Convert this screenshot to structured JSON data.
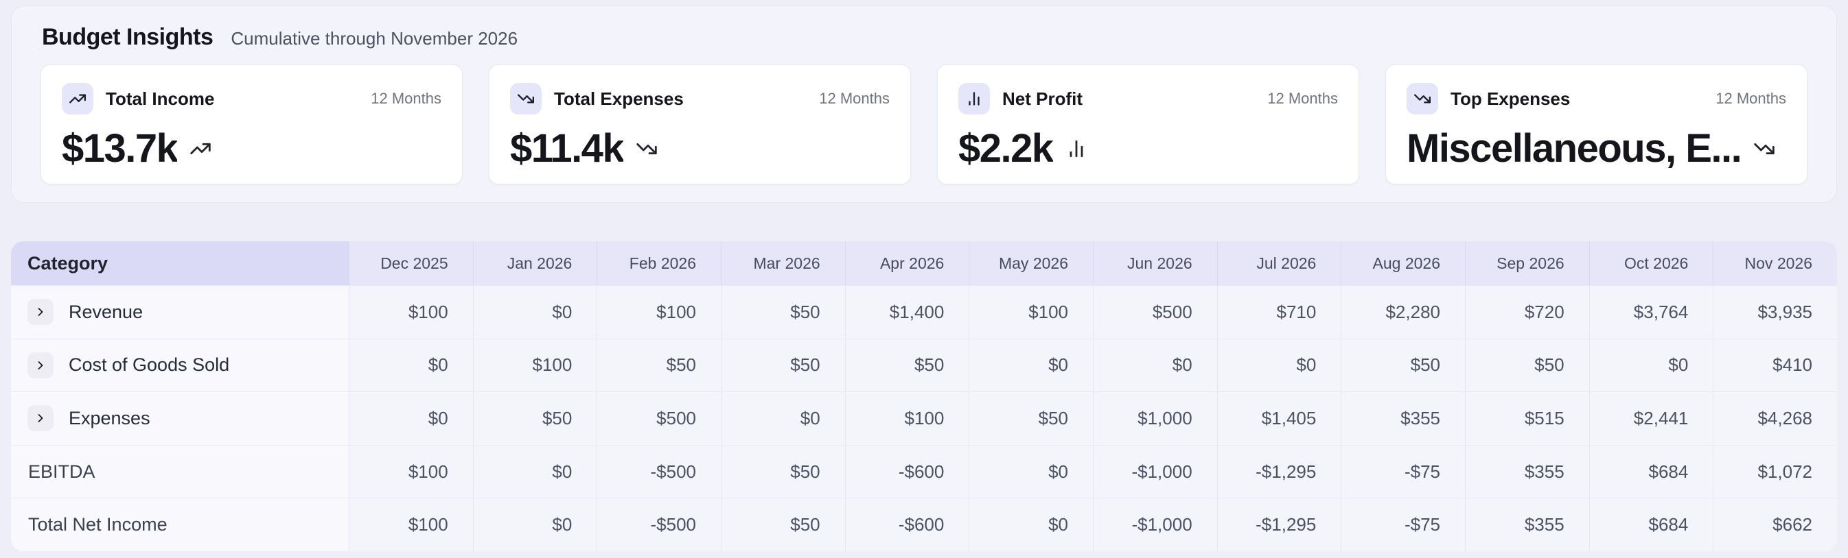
{
  "header": {
    "title": "Budget Insights",
    "subtitle": "Cumulative through November 2026"
  },
  "cards": [
    {
      "label": "Total Income",
      "period": "12 Months",
      "value": "$13.7k",
      "icon": "trending-up-icon"
    },
    {
      "label": "Total Expenses",
      "period": "12 Months",
      "value": "$11.4k",
      "icon": "trending-down-icon"
    },
    {
      "label": "Net Profit",
      "period": "12 Months",
      "value": "$2.2k",
      "icon": "bar-chart-icon"
    },
    {
      "label": "Top Expenses",
      "period": "12 Months",
      "value": "Miscellaneous, E...",
      "icon": "trending-down-icon"
    }
  ],
  "table": {
    "category_header": "Category",
    "months": [
      "Dec 2025",
      "Jan 2026",
      "Feb 2026",
      "Mar 2026",
      "Apr 2026",
      "May 2026",
      "Jun 2026",
      "Jul 2026",
      "Aug 2026",
      "Sep 2026",
      "Oct 2026",
      "Nov 2026"
    ],
    "rows": [
      {
        "label": "Revenue",
        "expandable": true,
        "values": [
          "$100",
          "$0",
          "$100",
          "$50",
          "$1,400",
          "$100",
          "$500",
          "$710",
          "$2,280",
          "$720",
          "$3,764",
          "$3,935"
        ]
      },
      {
        "label": "Cost of Goods Sold",
        "expandable": true,
        "values": [
          "$0",
          "$100",
          "$50",
          "$50",
          "$50",
          "$0",
          "$0",
          "$0",
          "$50",
          "$50",
          "$0",
          "$410"
        ]
      },
      {
        "label": "Expenses",
        "expandable": true,
        "values": [
          "$0",
          "$50",
          "$500",
          "$0",
          "$100",
          "$50",
          "$1,000",
          "$1,405",
          "$355",
          "$515",
          "$2,441",
          "$4,268"
        ]
      },
      {
        "label": "EBITDA",
        "expandable": false,
        "values": [
          "$100",
          "$0",
          "-$500",
          "$50",
          "-$600",
          "$0",
          "-$1,000",
          "-$1,295",
          "-$75",
          "$355",
          "$684",
          "$1,072"
        ]
      },
      {
        "label": "Total Net Income",
        "expandable": false,
        "values": [
          "$100",
          "$0",
          "-$500",
          "$50",
          "-$600",
          "$0",
          "-$1,000",
          "-$1,295",
          "-$75",
          "$355",
          "$684",
          "$662"
        ]
      }
    ]
  },
  "colors": {
    "page_background": "#edeef8",
    "panel_background": "#f3f4fb",
    "card_background": "#ffffff",
    "icon_badge_background": "#e6e6fa",
    "category_header_background": "#dbdaf6",
    "month_header_background": "#e7e6f9",
    "value_cell_background": "#f4f4fb",
    "label_cell_background": "#f8f8fd"
  }
}
